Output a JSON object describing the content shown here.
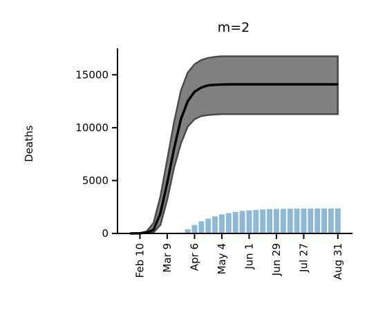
{
  "chart_data": {
    "type": "line",
    "title": "m=2",
    "xlabel": "",
    "ylabel": "Deaths",
    "grid": false,
    "y_ticks": [
      0,
      5000,
      10000,
      15000
    ],
    "y_tick_labels": [
      "0",
      "5000",
      "10000",
      "15000"
    ],
    "x_ticks": [
      "Feb 10",
      "Mar 9",
      "Apr 6",
      "May 4",
      "Jun 1",
      "Jun 29",
      "Jul 27",
      "Aug 31"
    ],
    "x_tick_days": [
      0,
      28,
      56,
      84,
      112,
      140,
      168,
      203
    ],
    "ylim": [
      0,
      17500
    ],
    "xlim_days": [
      -23,
      218
    ],
    "colors": {
      "line": "#000000",
      "band": "#808080",
      "bars": "#8db8d8"
    },
    "series": [
      {
        "name": "",
        "kind": "line",
        "x_days": [
          -10,
          0,
          7,
          14,
          21,
          28,
          35,
          42,
          49,
          56,
          63,
          70,
          77,
          84,
          91,
          98,
          112,
          140,
          168,
          203
        ],
        "y": [
          0,
          20,
          80,
          350,
          1900,
          4800,
          8000,
          10800,
          12500,
          13400,
          13800,
          14000,
          14050,
          14080,
          14100,
          14100,
          14100,
          14100,
          14100,
          14100
        ]
      },
      {
        "name": "",
        "kind": "band_upper",
        "x_days": [
          -10,
          0,
          7,
          14,
          21,
          28,
          35,
          42,
          49,
          56,
          63,
          70,
          77,
          84,
          91,
          98,
          112,
          140,
          168,
          203
        ],
        "y": [
          0,
          40,
          200,
          1000,
          3500,
          7000,
          10500,
          13500,
          15200,
          16000,
          16400,
          16600,
          16700,
          16750,
          16750,
          16750,
          16750,
          16750,
          16750,
          16750
        ]
      },
      {
        "name": "",
        "kind": "band_lower",
        "x_days": [
          -10,
          0,
          7,
          14,
          21,
          28,
          35,
          42,
          49,
          56,
          63,
          70,
          77,
          84,
          91,
          98,
          112,
          140,
          168,
          203
        ],
        "y": [
          0,
          5,
          30,
          100,
          800,
          3200,
          6200,
          8500,
          10100,
          10800,
          11100,
          11200,
          11250,
          11280,
          11280,
          11280,
          11280,
          11280,
          11280,
          11280
        ]
      },
      {
        "name": "",
        "kind": "bar",
        "x_days": [
          42,
          49,
          56,
          63,
          70,
          77,
          84,
          91,
          98,
          105,
          112,
          119,
          126,
          133,
          140,
          147,
          154,
          161,
          168,
          175,
          182,
          189,
          196,
          203
        ],
        "y": [
          80,
          400,
          800,
          1150,
          1400,
          1620,
          1800,
          1920,
          2030,
          2120,
          2180,
          2230,
          2270,
          2300,
          2320,
          2330,
          2340,
          2350,
          2355,
          2360,
          2362,
          2364,
          2365,
          2366
        ]
      }
    ]
  }
}
